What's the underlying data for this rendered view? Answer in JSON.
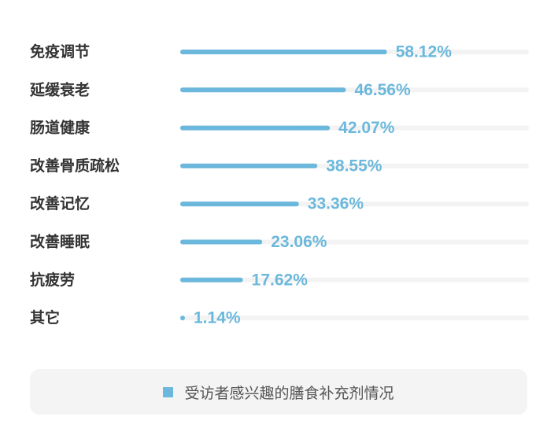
{
  "chart_data": {
    "type": "bar",
    "orientation": "horizontal",
    "categories": [
      "免疫调节",
      "延缓衰老",
      "肠道健康",
      "改善骨质疏松",
      "改善记忆",
      "改善睡眠",
      "抗疲劳",
      "其它"
    ],
    "values": [
      58.12,
      46.56,
      42.07,
      38.55,
      33.36,
      23.06,
      17.62,
      1.14
    ],
    "data_labels": [
      "58.12%",
      "46.56%",
      "42.07%",
      "38.55%",
      "33.36%",
      "23.06%",
      "17.62%",
      "1.14%"
    ],
    "xlim": [
      0,
      100
    ],
    "unit": "%",
    "grid": false,
    "legend_position": "bottom",
    "series": [
      {
        "name": "受访者感兴趣的膳食补充剂情况",
        "values": [
          58.12,
          46.56,
          42.07,
          38.55,
          33.36,
          23.06,
          17.62,
          1.14
        ]
      }
    ],
    "colors": {
      "bar": "#6bb8dc",
      "track": "#f3f3f3",
      "category_text": "#333333",
      "value_text": "#6bb8dc"
    }
  },
  "legend": {
    "label": "受访者感兴趣的膳食补充剂情况",
    "color": "#6bb8dc"
  }
}
